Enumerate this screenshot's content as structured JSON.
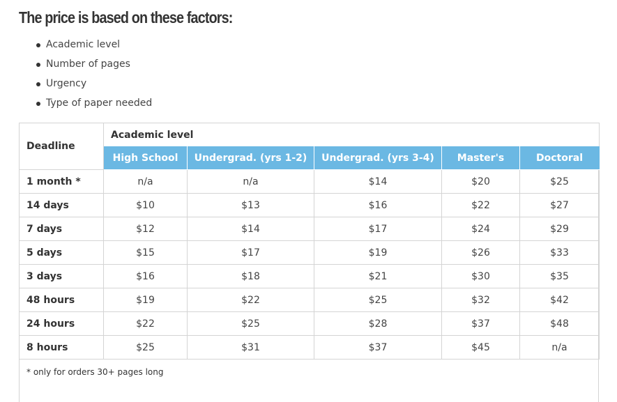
{
  "heading": "The price is based on these factors:",
  "factors": [
    "Academic level",
    "Number of pages",
    "Urgency",
    "Type of paper needed"
  ],
  "table": {
    "deadline_header": "Deadline",
    "level_header": "Academic level",
    "levels": [
      "High School",
      "Undergrad. (yrs 1-2)",
      "Undergrad. (yrs 3-4)",
      "Master's",
      "Doctoral"
    ],
    "rows": [
      {
        "deadline": "1 month *",
        "prices": [
          "n/a",
          "n/a",
          "$14",
          "$20",
          "$25"
        ]
      },
      {
        "deadline": "14 days",
        "prices": [
          "$10",
          "$13",
          "$16",
          "$22",
          "$27"
        ]
      },
      {
        "deadline": "7 days",
        "prices": [
          "$12",
          "$14",
          "$17",
          "$24",
          "$29"
        ]
      },
      {
        "deadline": "5 days",
        "prices": [
          "$15",
          "$17",
          "$19",
          "$26",
          "$33"
        ]
      },
      {
        "deadline": "3 days",
        "prices": [
          "$16",
          "$18",
          "$21",
          "$30",
          "$35"
        ]
      },
      {
        "deadline": "48 hours",
        "prices": [
          "$19",
          "$22",
          "$25",
          "$32",
          "$42"
        ]
      },
      {
        "deadline": "24 hours",
        "prices": [
          "$22",
          "$25",
          "$28",
          "$37",
          "$48"
        ]
      },
      {
        "deadline": "8 hours",
        "prices": [
          "$25",
          "$31",
          "$37",
          "$45",
          "n/a"
        ]
      }
    ],
    "footnote": "* only for orders 30+ pages long"
  },
  "colors": {
    "header_accent": "#6bb8e3",
    "border": "#d4d4d4"
  }
}
